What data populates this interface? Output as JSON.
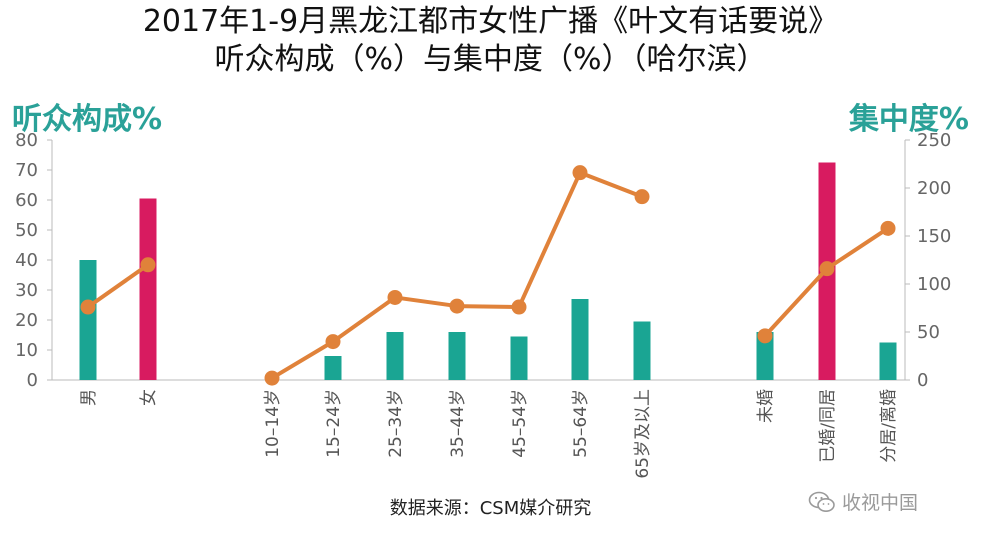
{
  "chart_data": {
    "type": "bar+line",
    "title_line1": "2017年1-9月黑龙江都市女性广播《叶文有话要说》",
    "title_line2": "听众构成（%）与集中度（%）（哈尔滨）",
    "left_axis_label": "听众构成%",
    "right_axis_label": "集中度%",
    "categories": [
      "男",
      "女",
      "10–14岁",
      "15–24岁",
      "25–34岁",
      "35–44岁",
      "45–54岁",
      "55–64岁",
      "65岁及以上",
      "未婚",
      "已婚/同居",
      "分居/离婚"
    ],
    "groups": [
      [
        0,
        1
      ],
      [
        2,
        3,
        4,
        5,
        6,
        7,
        8
      ],
      [
        9,
        10,
        11
      ]
    ],
    "series": [
      {
        "name": "听众构成%",
        "kind": "bar",
        "axis": "left",
        "values": [
          40,
          60.5,
          0,
          8,
          16,
          16,
          14.5,
          27,
          19.5,
          16,
          72.5,
          12.5
        ],
        "colors": [
          "#1aa593",
          "#d81b60",
          "#1aa593",
          "#1aa593",
          "#1aa593",
          "#1aa593",
          "#1aa593",
          "#1aa593",
          "#1aa593",
          "#1aa593",
          "#d81b60",
          "#1aa593"
        ]
      },
      {
        "name": "集中度%",
        "kind": "line",
        "axis": "right",
        "color": "#e0823a",
        "values": [
          76,
          120,
          2,
          40,
          86,
          77,
          76,
          216,
          191,
          46,
          116,
          158
        ],
        "segments": [
          [
            0,
            1
          ],
          [
            2,
            3,
            4,
            5,
            6,
            7,
            8
          ],
          [
            9,
            10,
            11
          ]
        ]
      }
    ],
    "left_ylim": [
      0,
      80
    ],
    "left_ticks": [
      "0",
      "10",
      "20",
      "30",
      "40",
      "50",
      "60",
      "70",
      "80"
    ],
    "right_ylim": [
      0,
      250
    ],
    "right_ticks": [
      "0",
      "50",
      "100",
      "150",
      "200",
      "250"
    ],
    "grid": false
  },
  "source_text": "数据来源：CSM媒介研究",
  "watermark_text": "收视中国",
  "watermark_icon": "wechat-icon"
}
